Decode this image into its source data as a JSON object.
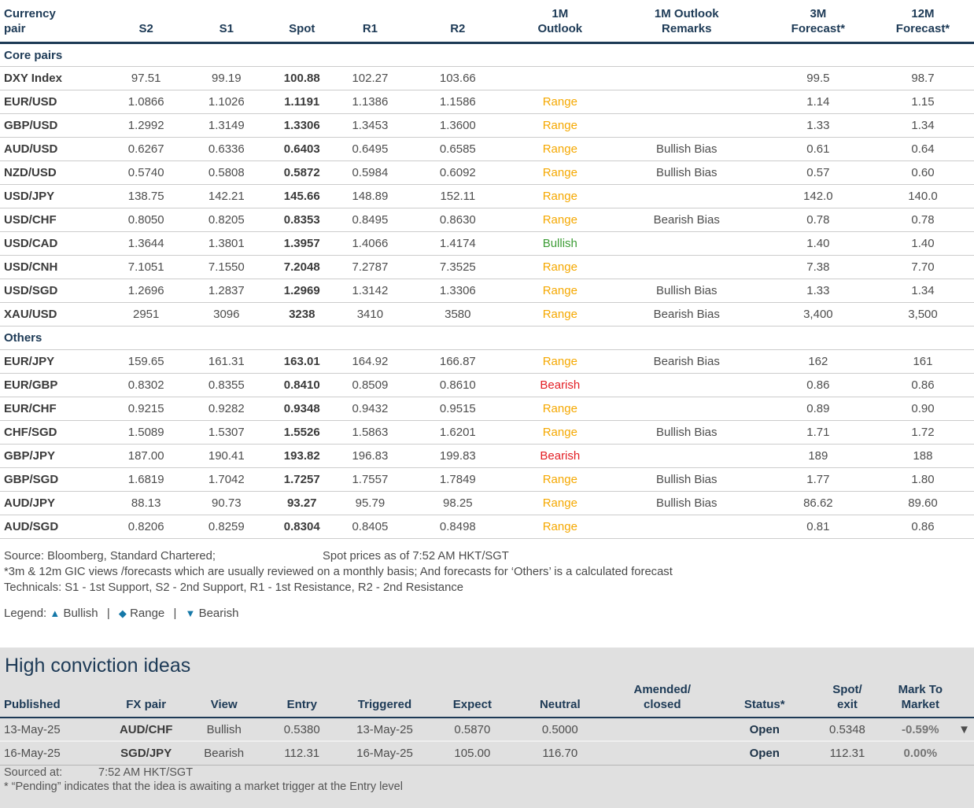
{
  "colors": {
    "navy": "#1d3a56",
    "range_orange": "#f5a800",
    "bullish_green": "#3c9c35",
    "bearish_red": "#e31e24",
    "legend_blue": "#1578a8",
    "panel_gray": "#e0e0e0"
  },
  "fx_table": {
    "columns": [
      "Currency\npair",
      "S2",
      "S1",
      "Spot",
      "R1",
      "R2",
      "1M\nOutlook",
      "1M Outlook\nRemarks",
      "3M\nForecast*",
      "12M\nForecast*"
    ],
    "sections": [
      {
        "name": "Core pairs",
        "rows": [
          {
            "pair": "DXY Index",
            "s2": "97.51",
            "s1": "99.19",
            "spot": "100.88",
            "r1": "102.27",
            "r2": "103.66",
            "outlook": "",
            "outlook_type": "",
            "remarks": "",
            "f3m": "99.5",
            "f12m": "98.7"
          },
          {
            "pair": "EUR/USD",
            "s2": "1.0866",
            "s1": "1.1026",
            "spot": "1.1191",
            "r1": "1.1386",
            "r2": "1.1586",
            "outlook": "Range",
            "outlook_type": "range",
            "remarks": "",
            "f3m": "1.14",
            "f12m": "1.15"
          },
          {
            "pair": "GBP/USD",
            "s2": "1.2992",
            "s1": "1.3149",
            "spot": "1.3306",
            "r1": "1.3453",
            "r2": "1.3600",
            "outlook": "Range",
            "outlook_type": "range",
            "remarks": "",
            "f3m": "1.33",
            "f12m": "1.34"
          },
          {
            "pair": "AUD/USD",
            "s2": "0.6267",
            "s1": "0.6336",
            "spot": "0.6403",
            "r1": "0.6495",
            "r2": "0.6585",
            "outlook": "Range",
            "outlook_type": "range",
            "remarks": "Bullish Bias",
            "f3m": "0.61",
            "f12m": "0.64"
          },
          {
            "pair": "NZD/USD",
            "s2": "0.5740",
            "s1": "0.5808",
            "spot": "0.5872",
            "r1": "0.5984",
            "r2": "0.6092",
            "outlook": "Range",
            "outlook_type": "range",
            "remarks": "Bullish Bias",
            "f3m": "0.57",
            "f12m": "0.60"
          },
          {
            "pair": "USD/JPY",
            "s2": "138.75",
            "s1": "142.21",
            "spot": "145.66",
            "r1": "148.89",
            "r2": "152.11",
            "outlook": "Range",
            "outlook_type": "range",
            "remarks": "",
            "f3m": "142.0",
            "f12m": "140.0"
          },
          {
            "pair": "USD/CHF",
            "s2": "0.8050",
            "s1": "0.8205",
            "spot": "0.8353",
            "r1": "0.8495",
            "r2": "0.8630",
            "outlook": "Range",
            "outlook_type": "range",
            "remarks": "Bearish Bias",
            "f3m": "0.78",
            "f12m": "0.78"
          },
          {
            "pair": "USD/CAD",
            "s2": "1.3644",
            "s1": "1.3801",
            "spot": "1.3957",
            "r1": "1.4066",
            "r2": "1.4174",
            "outlook": "Bullish",
            "outlook_type": "bullish",
            "remarks": "",
            "f3m": "1.40",
            "f12m": "1.40"
          },
          {
            "pair": "USD/CNH",
            "s2": "7.1051",
            "s1": "7.1550",
            "spot": "7.2048",
            "r1": "7.2787",
            "r2": "7.3525",
            "outlook": "Range",
            "outlook_type": "range",
            "remarks": "",
            "f3m": "7.38",
            "f12m": "7.70"
          },
          {
            "pair": "USD/SGD",
            "s2": "1.2696",
            "s1": "1.2837",
            "spot": "1.2969",
            "r1": "1.3142",
            "r2": "1.3306",
            "outlook": "Range",
            "outlook_type": "range",
            "remarks": "Bullish Bias",
            "f3m": "1.33",
            "f12m": "1.34"
          },
          {
            "pair": "XAU/USD",
            "s2": "2951",
            "s1": "3096",
            "spot": "3238",
            "r1": "3410",
            "r2": "3580",
            "outlook": "Range",
            "outlook_type": "range",
            "remarks": "Bearish Bias",
            "f3m": "3,400",
            "f12m": "3,500"
          }
        ]
      },
      {
        "name": "Others",
        "rows": [
          {
            "pair": "EUR/JPY",
            "s2": "159.65",
            "s1": "161.31",
            "spot": "163.01",
            "r1": "164.92",
            "r2": "166.87",
            "outlook": "Range",
            "outlook_type": "range",
            "remarks": "Bearish Bias",
            "f3m": "162",
            "f12m": "161"
          },
          {
            "pair": "EUR/GBP",
            "s2": "0.8302",
            "s1": "0.8355",
            "spot": "0.8410",
            "r1": "0.8509",
            "r2": "0.8610",
            "outlook": "Bearish",
            "outlook_type": "bearish",
            "remarks": "",
            "f3m": "0.86",
            "f12m": "0.86"
          },
          {
            "pair": "EUR/CHF",
            "s2": "0.9215",
            "s1": "0.9282",
            "spot": "0.9348",
            "r1": "0.9432",
            "r2": "0.9515",
            "outlook": "Range",
            "outlook_type": "range",
            "remarks": "",
            "f3m": "0.89",
            "f12m": "0.90"
          },
          {
            "pair": "CHF/SGD",
            "s2": "1.5089",
            "s1": "1.5307",
            "spot": "1.5526",
            "r1": "1.5863",
            "r2": "1.6201",
            "outlook": "Range",
            "outlook_type": "range",
            "remarks": "Bullish Bias",
            "f3m": "1.71",
            "f12m": "1.72"
          },
          {
            "pair": "GBP/JPY",
            "s2": "187.00",
            "s1": "190.41",
            "spot": "193.82",
            "r1": "196.83",
            "r2": "199.83",
            "outlook": "Bearish",
            "outlook_type": "bearish",
            "remarks": "",
            "f3m": "189",
            "f12m": "188"
          },
          {
            "pair": "GBP/SGD",
            "s2": "1.6819",
            "s1": "1.7042",
            "spot": "1.7257",
            "r1": "1.7557",
            "r2": "1.7849",
            "outlook": "Range",
            "outlook_type": "range",
            "remarks": "Bullish Bias",
            "f3m": "1.77",
            "f12m": "1.80"
          },
          {
            "pair": "AUD/JPY",
            "s2": "88.13",
            "s1": "90.73",
            "spot": "93.27",
            "r1": "95.79",
            "r2": "98.25",
            "outlook": "Range",
            "outlook_type": "range",
            "remarks": "Bullish Bias",
            "f3m": "86.62",
            "f12m": "89.60"
          },
          {
            "pair": "AUD/SGD",
            "s2": "0.8206",
            "s1": "0.8259",
            "spot": "0.8304",
            "r1": "0.8405",
            "r2": "0.8498",
            "outlook": "Range",
            "outlook_type": "range",
            "remarks": "",
            "f3m": "0.81",
            "f12m": "0.86"
          }
        ]
      }
    ]
  },
  "footnotes": {
    "source_left": "Source: Bloomberg, Standard Chartered;",
    "source_right": "Spot prices as of  7:52 AM HKT/SGT",
    "note1": "*3m & 12m GIC views /forecasts which are usually reviewed on a monthly basis; And forecasts for ‘Others’ is a calculated forecast",
    "note2": "Technicals: S1 - 1st Support, S2 - 2nd Support, R1 - 1st Resistance, R2 - 2nd Resistance"
  },
  "legend": {
    "label": "Legend:",
    "items": [
      {
        "symbol": "▲",
        "label": "Bullish"
      },
      {
        "symbol": "◆",
        "label": "Range"
      },
      {
        "symbol": "▼",
        "label": "Bearish"
      }
    ],
    "separator": "|"
  },
  "high_conviction": {
    "title": "High conviction ideas",
    "columns": [
      "Published",
      "FX pair",
      "View",
      "Entry",
      "Triggered",
      "Expect",
      "Neutral",
      "Amended/\nclosed",
      "Status*",
      "Spot/\nexit",
      "Mark To\nMarket"
    ],
    "rows": [
      {
        "published": "13-May-25",
        "fx_pair": "AUD/CHF",
        "view": "Bullish",
        "view_type": "bullish",
        "entry": "0.5380",
        "triggered": "13-May-25",
        "expect": "0.5870",
        "neutral": "0.5000",
        "amended": "",
        "status": "Open",
        "spot_exit": "0.5348",
        "mtm": "-0.59%",
        "mtm_flag": "down"
      },
      {
        "published": "16-May-25",
        "fx_pair": "SGD/JPY",
        "view": "Bearish",
        "view_type": "bearish",
        "entry": "112.31",
        "triggered": "16-May-25",
        "expect": "105.00",
        "neutral": "116.70",
        "amended": "",
        "status": "Open",
        "spot_exit": "112.31",
        "mtm": "0.00%",
        "mtm_flag": ""
      }
    ],
    "sourced_label": "Sourced at:",
    "sourced_value": "7:52 AM HKT/SGT",
    "pending_note": "* “Pending” indicates that the idea is awaiting a market trigger at the Entry level",
    "flag_icon": "▼"
  }
}
